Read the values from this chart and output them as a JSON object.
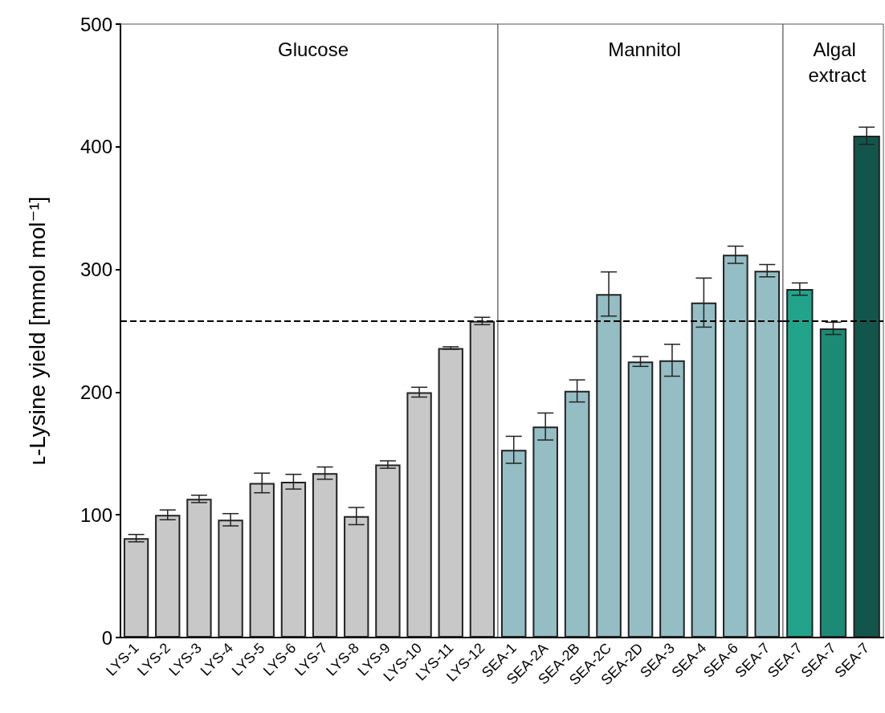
{
  "chart_data": [
    {
      "type": "bar",
      "title": "Glucose",
      "ylabel": "ʟ-Lysine yield [mmol mol⁻¹]",
      "categories": [
        "LYS-1",
        "LYS-2",
        "LYS-3",
        "LYS-4",
        "LYS-5",
        "LYS-6",
        "LYS-7",
        "LYS-8",
        "LYS-9",
        "LYS-10",
        "LYS-11",
        "LYS-12"
      ],
      "series": [
        {
          "color": "#c8c8c8",
          "values": [
            81,
            100,
            113,
            96,
            126,
            127,
            134,
            99,
            141,
            200,
            236,
            258
          ],
          "errors": [
            3,
            4,
            3,
            5,
            8,
            6,
            5,
            7,
            3,
            4,
            1,
            3
          ]
        }
      ],
      "ylim": [
        0,
        500
      ],
      "yticks": [
        0,
        100,
        200,
        300,
        400,
        500
      ],
      "ref_lines": [
        {
          "axis": "y",
          "value": 258,
          "color": "#000000",
          "line_style": "dashed"
        }
      ]
    },
    {
      "type": "bar",
      "title": "Mannitol",
      "categories": [
        "SEA-1",
        "SEA-2A",
        "SEA-2B",
        "SEA-2C",
        "SEA-2D",
        "SEA-3",
        "SEA-4",
        "SEA-6",
        "SEA-7"
      ],
      "series": [
        {
          "color": "#94bec4",
          "values": [
            153,
            172,
            201,
            280,
            225,
            226,
            273,
            312,
            299
          ],
          "errors": [
            11,
            11,
            9,
            18,
            4,
            13,
            20,
            7,
            5
          ]
        }
      ],
      "ylim": [
        0,
        500
      ],
      "tick_labels": "x",
      "ref_lines": [
        {
          "axis": "y",
          "value": 258,
          "color": "#000000",
          "line_style": "dashed"
        }
      ]
    },
    {
      "type": "bar",
      "title": "Algal extract",
      "categories": [
        "SEA-7",
        "SEA-7",
        "SEA-7"
      ],
      "series": [
        {
          "colors": [
            "#22a48a",
            "#1d8a76",
            "#12564b"
          ],
          "values": [
            284,
            252,
            409
          ],
          "errors": [
            5,
            5,
            7
          ]
        }
      ],
      "ylim": [
        0,
        500
      ],
      "tick_labels": "x",
      "ref_lines": [
        {
          "axis": "y",
          "value": 258,
          "color": "#000000",
          "line_style": "dashed"
        }
      ]
    }
  ]
}
